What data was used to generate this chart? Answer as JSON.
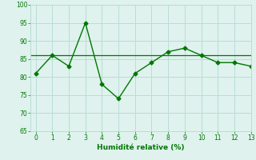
{
  "x": [
    0,
    1,
    2,
    3,
    4,
    5,
    6,
    7,
    8,
    9,
    10,
    11,
    12,
    13
  ],
  "y": [
    81,
    86,
    83,
    95,
    78,
    74,
    81,
    84,
    87,
    88,
    86,
    84,
    84,
    83
  ],
  "hline": 86,
  "line_color": "#007700",
  "bg_color": "#dff2ee",
  "grid_color": "#b8ddd5",
  "xlabel": "Humidité relative (%)",
  "ylim": [
    65,
    100
  ],
  "xlim": [
    -0.3,
    13
  ],
  "yticks": [
    65,
    70,
    75,
    80,
    85,
    90,
    95,
    100
  ],
  "xticks": [
    0,
    1,
    2,
    3,
    4,
    5,
    6,
    7,
    8,
    9,
    10,
    11,
    12,
    13
  ]
}
